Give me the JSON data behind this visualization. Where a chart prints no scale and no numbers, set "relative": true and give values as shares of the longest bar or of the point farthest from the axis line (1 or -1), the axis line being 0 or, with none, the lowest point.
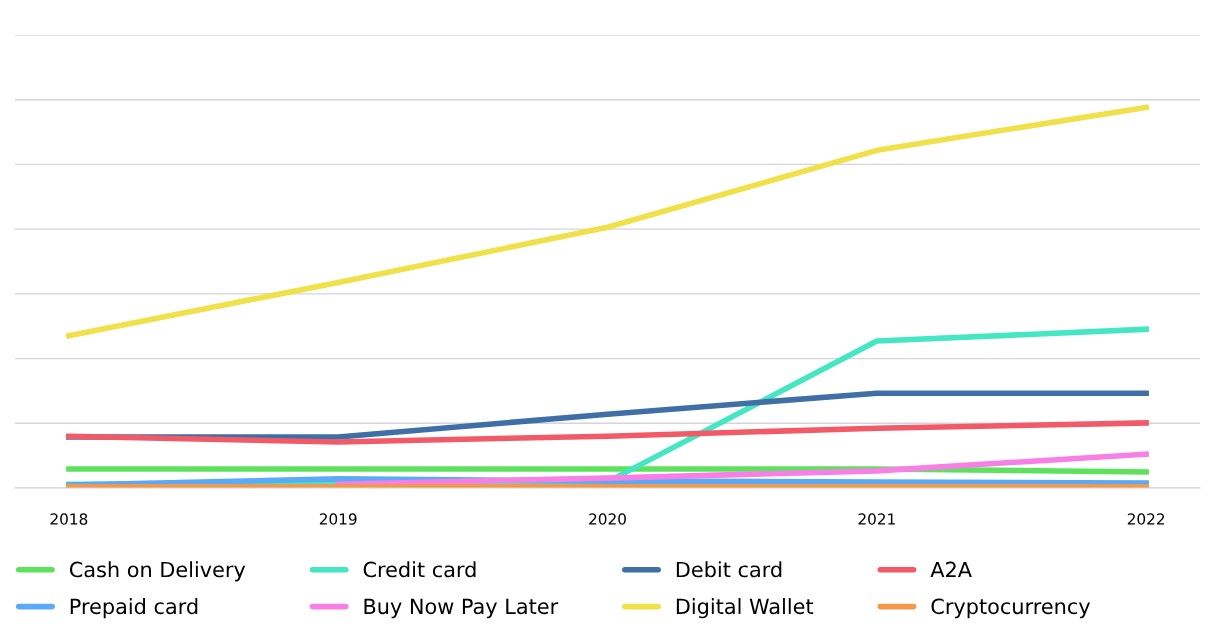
{
  "chart_data": {
    "type": "line",
    "relative": true,
    "grid": "y",
    "legend": "bottom",
    "marker": "none",
    "line_style": "solid",
    "categories": [
      "2018",
      "2019",
      "2020",
      "2021",
      "2022"
    ],
    "series": [
      {
        "name": "Cash on Delivery",
        "color": "#5ee25e",
        "values": [
          0.05,
          0.05,
          0.05,
          0.05,
          0.042
        ]
      },
      {
        "name": "Credit card",
        "color": "#45e6c3",
        "values": [
          0.01,
          0.01,
          0.016,
          0.386,
          0.417
        ]
      },
      {
        "name": "Debit card",
        "color": "#3f6fa6",
        "values": [
          0.134,
          0.134,
          0.194,
          0.249,
          0.249
        ]
      },
      {
        "name": "A2A",
        "color": "#f25a68",
        "values": [
          0.136,
          0.121,
          0.136,
          0.157,
          0.171
        ]
      },
      {
        "name": "Prepaid card",
        "color": "#5aaaf5",
        "values": [
          0.008,
          0.024,
          0.018,
          0.016,
          0.013
        ]
      },
      {
        "name": "Buy Now Pay Later",
        "color": "#f77fe6",
        "values": [
          null,
          0.01,
          0.026,
          0.045,
          0.089
        ]
      },
      {
        "name": "Digital Wallet",
        "color": "#f0e04a",
        "values": [
          0.4,
          0.54,
          0.685,
          0.887,
          1
        ]
      },
      {
        "name": "Cryptocurrency",
        "color": "#f39a4a",
        "values": [
          0.003,
          0.003,
          0.003,
          0.003,
          0.003
        ]
      }
    ]
  }
}
